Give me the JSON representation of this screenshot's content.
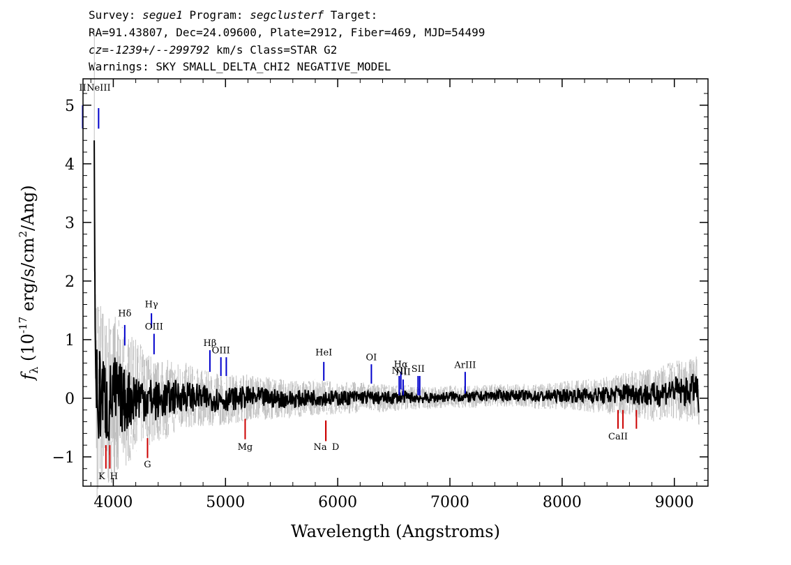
{
  "header": {
    "line1": {
      "survey_label": "Survey: ",
      "survey": "segue1",
      "program_label": " Program: ",
      "program": "segclusterf",
      "target_label": " Target:"
    },
    "line2": "RA=91.43807, Dec=24.09600, Plate=2912, Fiber=469, MJD=54499",
    "line3": {
      "cz": "cz=-1239+/--299792",
      "unit": " km/s Class=STAR G2"
    },
    "line4": "Warnings: SKY SMALL_DELTA_CHI2 NEGATIVE_MODEL"
  },
  "colors": {
    "spectrum": "#000000",
    "error": "#c0c0c0",
    "emission": "#0000cc",
    "absorption": "#cc0000"
  },
  "chart_data": {
    "type": "line",
    "xlabel": "Wavelength (Angstroms)",
    "ylabel_prefix": "f",
    "ylabel_sub": "λ",
    "ylabel_unit1": " (10",
    "ylabel_exp": "-17",
    "ylabel_unit2": " erg/s/cm",
    "ylabel_exp2": "2",
    "ylabel_unit3": "/Ang)",
    "xlim": [
      3730,
      9300
    ],
    "ylim": [
      -1.5,
      5.45
    ],
    "xticks": [
      4000,
      5000,
      6000,
      7000,
      8000,
      9000
    ],
    "xtick_labels": [
      "4000",
      "5000",
      "6000",
      "7000",
      "8000",
      "9000"
    ],
    "yticks": [
      -1,
      0,
      1,
      2,
      3,
      4,
      5
    ],
    "ytick_labels": [
      "−1",
      "0",
      "1",
      "2",
      "3",
      "4",
      "5"
    ],
    "spectrum_start": 3830,
    "spectrum_end": 9220,
    "series": [
      {
        "name": "flux",
        "color": "#000000",
        "x": [
          3830,
          3838,
          3845,
          3860,
          3900,
          3950,
          4000,
          4100,
          4200,
          4300,
          4400,
          4600,
          4800,
          5000,
          5200,
          5400,
          5600,
          5800,
          6000,
          6200,
          6400,
          6600,
          6800,
          7000,
          7200,
          7400,
          7600,
          7800,
          8000,
          8200,
          8400,
          8600,
          8800,
          9000,
          9100,
          9200,
          9220
        ],
        "y": [
          4.4,
          1.2,
          0.3,
          -0.1,
          0.15,
          -0.2,
          0.1,
          -0.05,
          0.05,
          0.0,
          -0.05,
          0.05,
          0.0,
          -0.02,
          0.02,
          0.0,
          -0.02,
          0.02,
          0.0,
          0.02,
          0.0,
          0.02,
          0.0,
          0.03,
          0.02,
          0.05,
          0.05,
          0.03,
          0.05,
          0.05,
          0.05,
          0.1,
          0.05,
          0.15,
          0.1,
          0.2,
          -0.2
        ]
      },
      {
        "name": "error",
        "color": "#c0c0c0",
        "x": [
          3830,
          3900,
          4000,
          4200,
          4400,
          4800,
          5200,
          5600,
          6000,
          6400,
          6800,
          7200,
          7600,
          8000,
          8400,
          8800,
          9220
        ],
        "y": [
          1.4,
          1.0,
          0.9,
          0.6,
          0.45,
          0.3,
          0.25,
          0.2,
          0.18,
          0.15,
          0.12,
          0.12,
          0.12,
          0.15,
          0.2,
          0.28,
          0.35
        ]
      }
    ],
    "emission_lines": [
      {
        "label": "II",
        "x": 3727,
        "y_bottom": 4.6,
        "y_top": 5.0,
        "label_y": 5.25
      },
      {
        "label": "NeIII",
        "x": 3869,
        "y_bottom": 4.6,
        "y_top": 4.95,
        "label_y": 5.25
      },
      {
        "label": "Hδ",
        "x": 4102,
        "y_bottom": 0.9,
        "y_top": 1.25,
        "label_y": 1.4
      },
      {
        "label": "Hγ",
        "x": 4340,
        "y_bottom": 1.2,
        "y_top": 1.45,
        "label_y": 1.55
      },
      {
        "label": "OIII",
        "x": 4363,
        "y_bottom": 0.75,
        "y_top": 1.1,
        "label_y": 1.17
      },
      {
        "label": "Hβ",
        "x": 4861,
        "y_bottom": 0.45,
        "y_top": 0.82,
        "label_y": 0.89
      },
      {
        "label": "OIII",
        "x": 4959,
        "y_bottom": 0.38,
        "y_top": 0.7,
        "label_y": 0.77
      },
      {
        "label": "",
        "x": 5007,
        "y_bottom": 0.38,
        "y_top": 0.7,
        "label_y": 0.0
      },
      {
        "label": "HeI",
        "x": 5876,
        "y_bottom": 0.3,
        "y_top": 0.62,
        "label_y": 0.73
      },
      {
        "label": "OI",
        "x": 6300,
        "y_bottom": 0.25,
        "y_top": 0.58,
        "label_y": 0.65
      },
      {
        "label": "NII",
        "x": 6548,
        "y_bottom": 0.05,
        "y_top": 0.38,
        "label_y": 0.42
      },
      {
        "label": "Hα",
        "x": 6563,
        "y_bottom": 0.15,
        "y_top": 0.45,
        "label_y": 0.53
      },
      {
        "label": "NII",
        "x": 6583,
        "y_bottom": 0.05,
        "y_top": 0.32,
        "label_y": 0.4
      },
      {
        "label": "SII",
        "x": 6716,
        "y_bottom": 0.05,
        "y_top": 0.38,
        "label_y": 0.45
      },
      {
        "label": "",
        "x": 6731,
        "y_bottom": 0.05,
        "y_top": 0.38,
        "label_y": 0.0
      },
      {
        "label": "ArIII",
        "x": 7136,
        "y_bottom": 0.08,
        "y_top": 0.45,
        "label_y": 0.52
      }
    ],
    "absorption_lines": [
      {
        "label": "K",
        "x": 3934,
        "y_top": -0.8,
        "y_bottom": -1.2,
        "label_y": -1.38
      },
      {
        "label": "H",
        "x": 3969,
        "y_top": -0.8,
        "y_bottom": -1.2,
        "label_y": -1.38
      },
      {
        "label": "G",
        "x": 4305,
        "y_top": -0.68,
        "y_bottom": -1.02,
        "label_y": -1.18
      },
      {
        "label": "Mg",
        "x": 5175,
        "y_top": -0.35,
        "y_bottom": -0.7,
        "label_y": -0.88
      },
      {
        "label": "Na",
        "x": 5894,
        "y_top": -0.38,
        "y_bottom": -0.73,
        "label_y": -0.88
      },
      {
        "label": "D",
        "x": 5894,
        "y_top": -0.38,
        "y_bottom": -0.73,
        "label_y": -0.88
      },
      {
        "label": "CaII",
        "x": 8498,
        "y_top": -0.2,
        "y_bottom": -0.52,
        "label_y": -0.7
      },
      {
        "label": "",
        "x": 8542,
        "y_top": -0.2,
        "y_bottom": -0.52,
        "label_y": 0.0
      },
      {
        "label": "",
        "x": 8662,
        "y_top": -0.2,
        "y_bottom": -0.52,
        "label_y": 0.0
      }
    ]
  }
}
